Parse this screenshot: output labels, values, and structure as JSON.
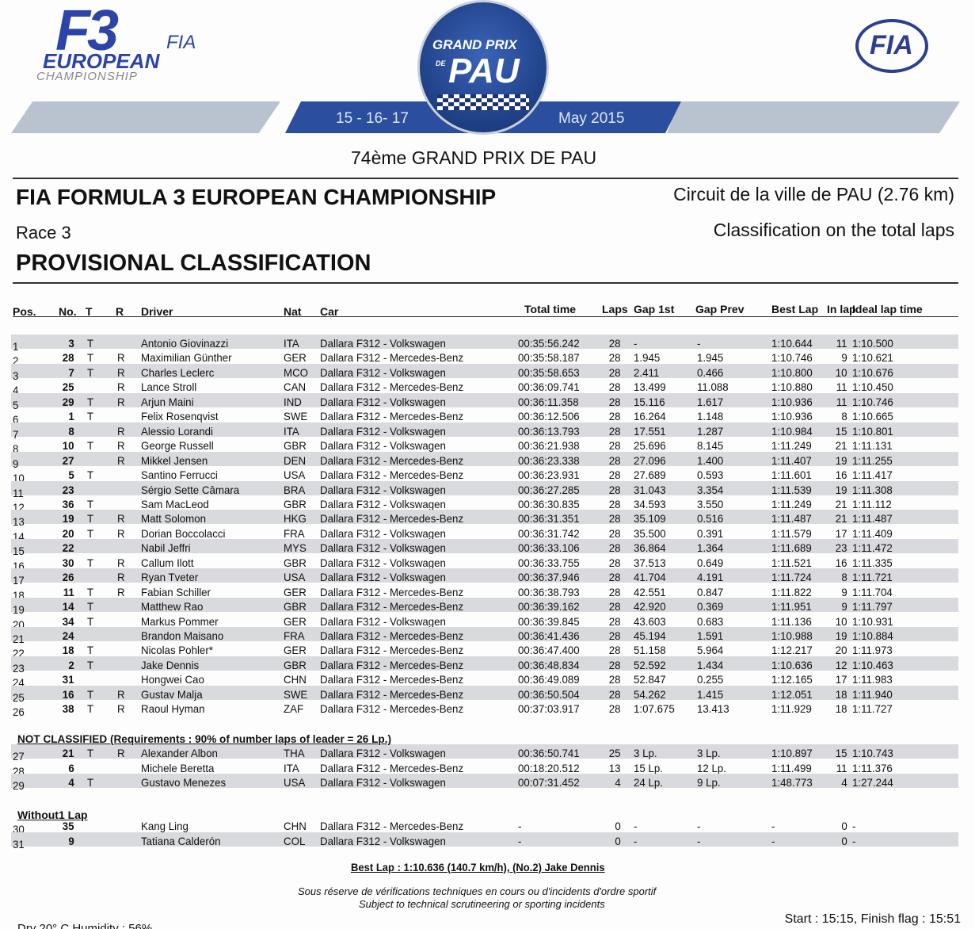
{
  "logos": {
    "f3": "F3",
    "fia_small": "FIA",
    "european": "EUROPEAN",
    "championship": "CHAMPIONSHIP",
    "gp_line1": "GRAND PRIX",
    "gp_de": "DE",
    "gp_pau": "PAU",
    "fia": "FIA"
  },
  "banner": {
    "dates": "15 - 16- 17",
    "month": "May 2015"
  },
  "event_title": "74ème GRAND PRIX DE PAU",
  "championship": "FIA FORMULA 3 EUROPEAN CHAMPIONSHIP",
  "circuit": "Circuit de la ville de PAU (2.76 km)",
  "race": "Race 3",
  "classification_basis": "Classification on the total laps",
  "doc_title": "PROVISIONAL CLASSIFICATION",
  "columns": [
    "Pos.",
    "No.",
    "T",
    "R",
    "Driver",
    "Nat",
    "Car",
    "Total time",
    "Laps",
    "Gap 1st",
    "Gap  Prev",
    "Best Lap",
    "In lap",
    "Ideal lap time"
  ],
  "colors": {
    "stripe": "#d9dadd",
    "banner_blue": "#2b4f9e",
    "banner_gray": "#b9c2cf"
  },
  "rows": [
    [
      "1",
      "3",
      "T",
      "",
      "Antonio Giovinazzi",
      "ITA",
      "Dallara F312 - Volkswagen",
      "00:35:56.242",
      "28",
      "-",
      "-",
      "1:10.644",
      "11",
      "1:10.500"
    ],
    [
      "2",
      "28",
      "T",
      "R",
      "Maximilian Günther",
      "GER",
      "Dallara F312 - Mercedes-Benz",
      "00:35:58.187",
      "28",
      "1.945",
      "1.945",
      "1:10.746",
      "9",
      "1:10.621"
    ],
    [
      "3",
      "7",
      "T",
      "R",
      "Charles Leclerc",
      "MCO",
      "Dallara F312 - Volkswagen",
      "00:35:58.653",
      "28",
      "2.411",
      "0.466",
      "1:10.800",
      "10",
      "1:10.676"
    ],
    [
      "4",
      "25",
      "",
      "R",
      "Lance Stroll",
      "CAN",
      "Dallara F312 - Mercedes-Benz",
      "00:36:09.741",
      "28",
      "13.499",
      "11.088",
      "1:10.880",
      "11",
      "1:10.450"
    ],
    [
      "5",
      "29",
      "T",
      "R",
      "Arjun Maini",
      "IND",
      "Dallara F312 - Volkswagen",
      "00:36:11.358",
      "28",
      "15.116",
      "1.617",
      "1:10.936",
      "11",
      "1:10.746"
    ],
    [
      "6",
      "1",
      "T",
      "",
      "Felix Rosenqvist",
      "SWE",
      "Dallara F312 - Mercedes-Benz",
      "00:36:12.506",
      "28",
      "16.264",
      "1.148",
      "1:10.936",
      "8",
      "1:10.665"
    ],
    [
      "7",
      "8",
      "",
      "R",
      "Alessio Lorandi",
      "ITA",
      "Dallara F312 - Volkswagen",
      "00:36:13.793",
      "28",
      "17.551",
      "1.287",
      "1:10.984",
      "15",
      "1:10.801"
    ],
    [
      "8",
      "10",
      "T",
      "R",
      "George Russell",
      "GBR",
      "Dallara F312 - Volkswagen",
      "00:36:21.938",
      "28",
      "25.696",
      "8.145",
      "1:11.249",
      "21",
      "1:11.131"
    ],
    [
      "9",
      "27",
      "",
      "R",
      "Mikkel Jensen",
      "DEN",
      "Dallara F312 - Mercedes-Benz",
      "00:36:23.338",
      "28",
      "27.096",
      "1.400",
      "1:11.407",
      "19",
      "1:11.255"
    ],
    [
      "10",
      "5",
      "T",
      "",
      "Santino Ferrucci",
      "USA",
      "Dallara F312 - Mercedes-Benz",
      "00:36:23.931",
      "28",
      "27.689",
      "0.593",
      "1:11.601",
      "16",
      "1:11.417"
    ],
    [
      "11",
      "23",
      "",
      "",
      "Sérgio Sette Câmara",
      "BRA",
      "Dallara F312 - Volkswagen",
      "00:36:27.285",
      "28",
      "31.043",
      "3.354",
      "1:11.539",
      "19",
      "1:11.308"
    ],
    [
      "12",
      "36",
      "T",
      "",
      "Sam MacLeod",
      "GBR",
      "Dallara F312 - Volkswagen",
      "00:36:30.835",
      "28",
      "34.593",
      "3.550",
      "1:11.249",
      "21",
      "1:11.112"
    ],
    [
      "13",
      "19",
      "T",
      "R",
      "Matt Solomon",
      "HKG",
      "Dallara F312 - Mercedes-Benz",
      "00:36:31.351",
      "28",
      "35.109",
      "0.516",
      "1:11.487",
      "21",
      "1:11.487"
    ],
    [
      "14",
      "20",
      "T",
      "R",
      "Dorian Boccolacci",
      "FRA",
      "Dallara F312 - Volkswagen",
      "00:36:31.742",
      "28",
      "35.500",
      "0.391",
      "1:11.579",
      "17",
      "1:11.409"
    ],
    [
      "15",
      "22",
      "",
      "",
      "Nabil Jeffri",
      "MYS",
      "Dallara F312 - Volkswagen",
      "00:36:33.106",
      "28",
      "36.864",
      "1.364",
      "1:11.689",
      "23",
      "1:11.472"
    ],
    [
      "16",
      "30",
      "T",
      "R",
      "Callum Ilott",
      "GBR",
      "Dallara F312 - Volkswagen",
      "00:36:33.755",
      "28",
      "37.513",
      "0.649",
      "1:11.521",
      "16",
      "1:11.335"
    ],
    [
      "17",
      "26",
      "",
      "R",
      "Ryan Tveter",
      "USA",
      "Dallara F312 - Volkswagen",
      "00:36:37.946",
      "28",
      "41.704",
      "4.191",
      "1:11.724",
      "8",
      "1:11.721"
    ],
    [
      "18",
      "11",
      "T",
      "R",
      "Fabian Schiller",
      "GER",
      "Dallara F312 - Mercedes-Benz",
      "00:36:38.793",
      "28",
      "42.551",
      "0.847",
      "1:11.822",
      "9",
      "1:11.704"
    ],
    [
      "19",
      "14",
      "T",
      "",
      "Matthew Rao",
      "GBR",
      "Dallara F312 - Mercedes-Benz",
      "00:36:39.162",
      "28",
      "42.920",
      "0.369",
      "1:11.951",
      "9",
      "1:11.797"
    ],
    [
      "20",
      "34",
      "T",
      "",
      "Markus Pommer",
      "GER",
      "Dallara F312 - Volkswagen",
      "00:36:39.845",
      "28",
      "43.603",
      "0.683",
      "1:11.136",
      "10",
      "1:10.931"
    ],
    [
      "21",
      "24",
      "",
      "",
      "Brandon Maisano",
      "FRA",
      "Dallara F312 - Mercedes-Benz",
      "00:36:41.436",
      "28",
      "45.194",
      "1.591",
      "1:10.988",
      "19",
      "1:10.884"
    ],
    [
      "22",
      "18",
      "T",
      "",
      "Nicolas Pohler*",
      "GER",
      "Dallara F312 - Mercedes-Benz",
      "00:36:47.400",
      "28",
      "51.158",
      "5.964",
      "1:12.217",
      "20",
      "1:11.973"
    ],
    [
      "23",
      "2",
      "T",
      "",
      "Jake Dennis",
      "GBR",
      "Dallara F312 - Mercedes-Benz",
      "00:36:48.834",
      "28",
      "52.592",
      "1.434",
      "1:10.636",
      "12",
      "1:10.463"
    ],
    [
      "24",
      "31",
      "",
      "",
      "Hongwei Cao",
      "CHN",
      "Dallara F312 - Mercedes-Benz",
      "00:36:49.089",
      "28",
      "52.847",
      "0.255",
      "1:12.165",
      "17",
      "1:11.983"
    ],
    [
      "25",
      "16",
      "T",
      "R",
      "Gustav Malja",
      "SWE",
      "Dallara F312 - Mercedes-Benz",
      "00:36:50.504",
      "28",
      "54.262",
      "1.415",
      "1:12.051",
      "18",
      "1:11.940"
    ],
    [
      "26",
      "38",
      "T",
      "R",
      "Raoul Hyman",
      "ZAF",
      "Dallara F312 - Mercedes-Benz",
      "00:37:03.917",
      "28",
      "1:07.675",
      "13.413",
      "1:11.929",
      "18",
      "1:11.727"
    ]
  ],
  "not_classified": {
    "title": "NOT CLASSIFIED (Requirements : 90% of number laps of leader = 26 Lp.)",
    "rows": [
      [
        "27",
        "21",
        "T",
        "R",
        "Alexander Albon",
        "THA",
        "Dallara F312 - Volkswagen",
        "00:36:50.741",
        "25",
        "3  Lp.",
        "3  Lp.",
        "1:10.897",
        "15",
        "1:10.743"
      ],
      [
        "28",
        "6",
        "",
        "",
        "Michele Beretta",
        "ITA",
        "Dallara F312 - Mercedes-Benz",
        "00:18:20.512",
        "13",
        "15  Lp.",
        "12  Lp.",
        "1:11.499",
        "11",
        "1:11.376"
      ],
      [
        "29",
        "4",
        "T",
        "",
        "Gustavo Menezes",
        "USA",
        "Dallara F312 - Volkswagen",
        "00:07:31.452",
        "4",
        "24  Lp.",
        "9  Lp.",
        "1:48.773",
        "4",
        "1:27.244"
      ]
    ]
  },
  "without_lap": {
    "title": "Without1 Lap",
    "rows": [
      [
        "30",
        "35",
        "",
        "",
        "Kang Ling",
        "CHN",
        "Dallara F312 - Mercedes-Benz",
        "-",
        "0",
        "-",
        "-",
        "-",
        "0",
        "-"
      ],
      [
        "31",
        "9",
        "",
        "",
        "Tatiana Calderón",
        "COL",
        "Dallara F312 - Volkswagen",
        "-",
        "0",
        "-",
        "-",
        "-",
        "0",
        "-"
      ]
    ]
  },
  "best_lap": "Best Lap : 1:10.636 (140.7 km/h), (No.2) Jake Dennis",
  "disclaimer_fr": "Sous réserve de vérifications techniques en cours ou d'incidents d'ordre sportif",
  "disclaimer_en": "Subject to technical scrutineering or sporting incidents",
  "weather": "Dry 20° C    Humidity : 56%",
  "start_finish": "Start : 15:15, Finish flag : 15:51"
}
